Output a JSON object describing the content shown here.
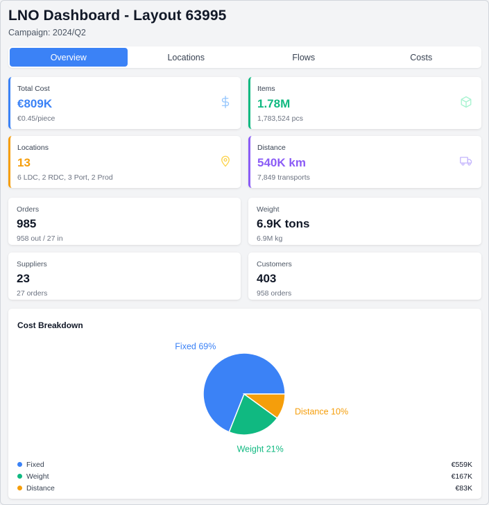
{
  "header": {
    "title": "LNO Dashboard - Layout 63995",
    "subtitle": "Campaign: 2024/Q2"
  },
  "tabs": [
    {
      "label": "Overview",
      "active": true
    },
    {
      "label": "Locations",
      "active": false
    },
    {
      "label": "Flows",
      "active": false
    },
    {
      "label": "Costs",
      "active": false
    }
  ],
  "kpis": {
    "total_cost": {
      "label": "Total Cost",
      "value": "€809K",
      "sub": "€0.45/piece",
      "color": "#3b82f6",
      "icon": "dollar-icon"
    },
    "items": {
      "label": "Items",
      "value": "1.78M",
      "sub": "1,783,524 pcs",
      "color": "#10b981",
      "icon": "box-icon"
    },
    "locations": {
      "label": "Locations",
      "value": "13",
      "sub": "6 LDC, 2 RDC, 3 Port, 2 Prod",
      "color": "#f59e0b",
      "icon": "map-pin-icon"
    },
    "distance": {
      "label": "Distance",
      "value": "540K km",
      "sub": "7,849 transports",
      "color": "#8b5cf6",
      "icon": "truck-icon"
    }
  },
  "stats": {
    "orders": {
      "label": "Orders",
      "value": "985",
      "sub": "958 out / 27 in"
    },
    "weight": {
      "label": "Weight",
      "value": "6.9K tons",
      "sub": "6.9M kg"
    },
    "suppliers": {
      "label": "Suppliers",
      "value": "23",
      "sub": "27 orders"
    },
    "customers": {
      "label": "Customers",
      "value": "403",
      "sub": "958 orders"
    }
  },
  "chart_data": {
    "type": "pie",
    "title": "Cost Breakdown",
    "series": [
      {
        "name": "Fixed",
        "percent": 69,
        "label": "Fixed 69%",
        "value_label": "€559K",
        "color": "#3b82f6"
      },
      {
        "name": "Weight",
        "percent": 21,
        "label": "Weight 21%",
        "value_label": "€167K",
        "color": "#10b981"
      },
      {
        "name": "Distance",
        "percent": 10,
        "label": "Distance 10%",
        "value_label": "€83K",
        "color": "#f59e0b"
      }
    ]
  }
}
